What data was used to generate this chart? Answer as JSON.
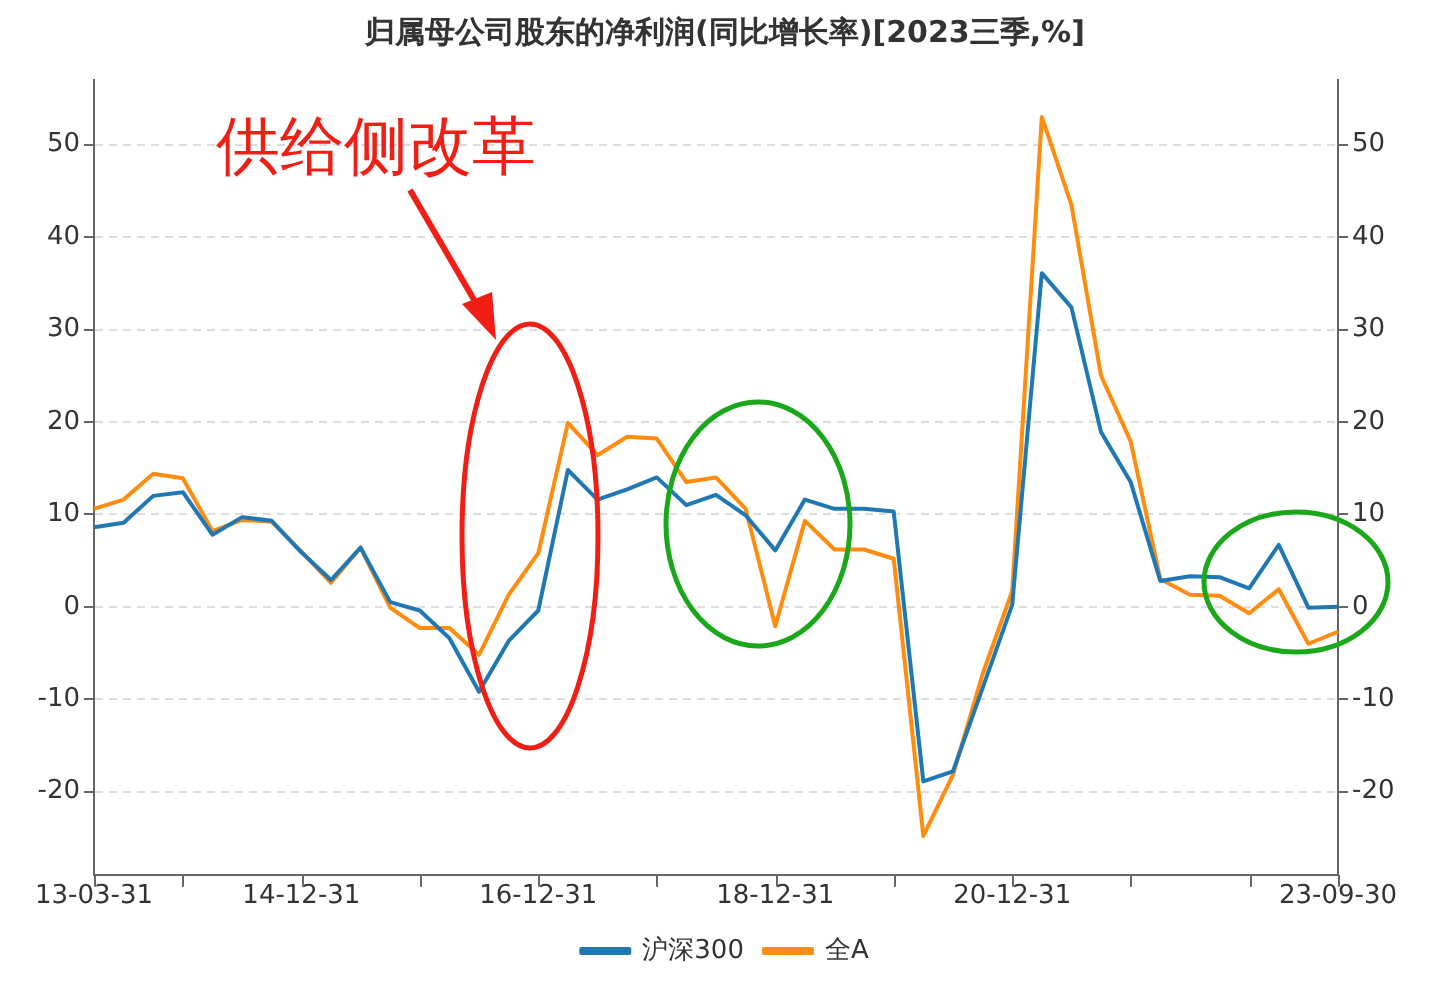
{
  "chart_data": {
    "type": "line",
    "title": "归属母公司股东的净利润(同比增长率)[2023三季,%]",
    "categories": [
      "13-03-31",
      null,
      null,
      null,
      null,
      null,
      null,
      "14-12-31",
      null,
      null,
      null,
      null,
      null,
      null,
      null,
      "16-12-31",
      null,
      null,
      null,
      null,
      null,
      null,
      null,
      "18-12-31",
      null,
      null,
      null,
      null,
      null,
      null,
      null,
      "20-12-31",
      null,
      null,
      null,
      null,
      null,
      null,
      null,
      null,
      null,
      null,
      "23-09-30"
    ],
    "series": [
      {
        "name": "沪深300",
        "color": "#1f78b4",
        "values": [
          8.6,
          9.1,
          12.0,
          12.4,
          7.8,
          9.7,
          9.3,
          5.9,
          2.9,
          6.4,
          0.5,
          -0.4,
          -3.4,
          -9.2,
          -3.7,
          -0.4,
          14.8,
          11.6,
          12.7,
          14.0,
          11.0,
          12.1,
          9.9,
          6.1,
          11.6,
          10.6,
          10.6,
          10.3,
          -18.9,
          -17.8,
          -8.8,
          0.2,
          36.1,
          32.4,
          18.9,
          13.5,
          2.8,
          3.3,
          3.2,
          2.0,
          6.7,
          -0.1,
          0.0
        ]
      },
      {
        "name": "全A",
        "color": "#ff8b0f",
        "values": [
          10.6,
          11.6,
          14.4,
          13.9,
          8.2,
          9.4,
          9.2,
          6.0,
          2.6,
          6.4,
          -0.1,
          -2.3,
          -2.3,
          -5.2,
          1.3,
          5.8,
          19.9,
          16.4,
          18.4,
          18.2,
          13.5,
          14.0,
          10.6,
          -2.1,
          9.3,
          6.2,
          6.2,
          5.2,
          -24.8,
          -18.2,
          -7.3,
          1.7,
          53.0,
          43.5,
          25.0,
          17.9,
          3.0,
          1.3,
          1.2,
          -0.7,
          1.9,
          -4.0,
          -2.7
        ]
      }
    ],
    "ylim": [
      -29,
      57
    ],
    "yticks": [
      -20,
      -10,
      0,
      10,
      20,
      30,
      40,
      50
    ],
    "y2lim": [
      -29,
      57
    ],
    "y2ticks": [
      -20,
      -10,
      0,
      10,
      20,
      30,
      40,
      50
    ],
    "annotations": [
      "供给侧改革"
    ],
    "grid": "y",
    "legend": "bottom",
    "marker": "none",
    "line_style": "solid"
  }
}
